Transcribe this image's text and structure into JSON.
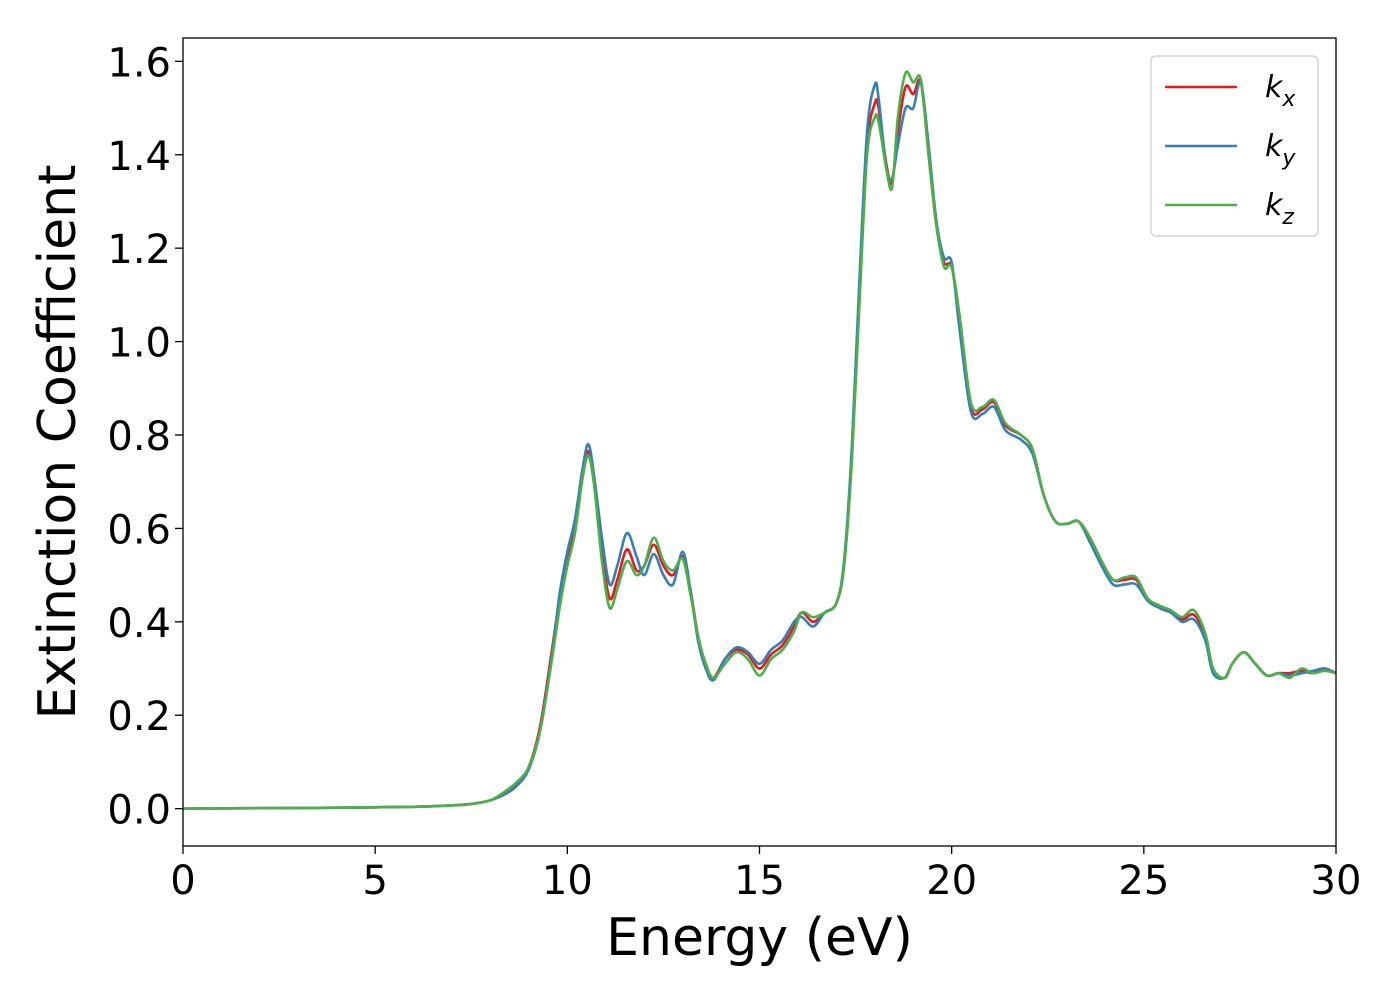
{
  "chart_data": {
    "type": "line",
    "title": "",
    "xlabel": "Energy (eV)",
    "ylabel": "Extinction Coefficient",
    "xlim": [
      0,
      30
    ],
    "ylim": [
      -0.08,
      1.65
    ],
    "xticks": [
      0,
      5,
      10,
      15,
      20,
      25,
      30
    ],
    "xtick_labels": [
      "0",
      "5",
      "10",
      "15",
      "20",
      "25",
      "30"
    ],
    "yticks": [
      0.0,
      0.2,
      0.4,
      0.6,
      0.8,
      1.0,
      1.2,
      1.4,
      1.6
    ],
    "ytick_labels": [
      "0.0",
      "0.2",
      "0.4",
      "0.6",
      "0.8",
      "1.0",
      "1.2",
      "1.4",
      "1.6"
    ],
    "grid": false,
    "legend_position": "top-right",
    "x": [
      0,
      2,
      4,
      6,
      7,
      7.5,
      8,
      8.4,
      8.7,
      9.0,
      9.3,
      9.6,
      9.8,
      10.0,
      10.2,
      10.4,
      10.55,
      10.7,
      10.9,
      11.1,
      11.3,
      11.55,
      11.8,
      12.0,
      12.25,
      12.5,
      12.75,
      13.0,
      13.2,
      13.4,
      13.6,
      13.8,
      14.1,
      14.4,
      14.7,
      15.0,
      15.3,
      15.6,
      15.9,
      16.1,
      16.4,
      16.7,
      17.0,
      17.2,
      17.4,
      17.6,
      17.8,
      18.0,
      18.1,
      18.3,
      18.45,
      18.6,
      18.8,
      19.0,
      19.2,
      19.4,
      19.6,
      19.8,
      20.0,
      20.2,
      20.5,
      20.8,
      21.1,
      21.4,
      21.8,
      22.1,
      22.4,
      22.7,
      23.0,
      23.3,
      23.6,
      23.9,
      24.2,
      24.5,
      24.8,
      25.1,
      25.4,
      25.7,
      26.0,
      26.3,
      26.6,
      26.8,
      27.1,
      27.3,
      27.6,
      27.9,
      28.2,
      28.5,
      28.8,
      29.1,
      29.4,
      29.7,
      30.0
    ],
    "series": [
      {
        "name": "k_x",
        "color": "#e41a1c",
        "values": [
          0.0,
          0.001,
          0.002,
          0.004,
          0.007,
          0.01,
          0.018,
          0.035,
          0.055,
          0.09,
          0.18,
          0.34,
          0.45,
          0.53,
          0.6,
          0.72,
          0.765,
          0.7,
          0.55,
          0.45,
          0.49,
          0.555,
          0.51,
          0.52,
          0.565,
          0.52,
          0.5,
          0.54,
          0.47,
          0.37,
          0.31,
          0.28,
          0.32,
          0.34,
          0.33,
          0.3,
          0.33,
          0.35,
          0.39,
          0.42,
          0.4,
          0.42,
          0.44,
          0.52,
          0.75,
          1.1,
          1.42,
          1.51,
          1.5,
          1.38,
          1.34,
          1.45,
          1.545,
          1.53,
          1.555,
          1.4,
          1.25,
          1.17,
          1.16,
          1.05,
          0.86,
          0.855,
          0.87,
          0.82,
          0.8,
          0.77,
          0.67,
          0.615,
          0.61,
          0.615,
          0.58,
          0.53,
          0.49,
          0.49,
          0.49,
          0.45,
          0.43,
          0.42,
          0.405,
          0.415,
          0.37,
          0.3,
          0.28,
          0.31,
          0.335,
          0.31,
          0.285,
          0.29,
          0.29,
          0.295,
          0.29,
          0.3,
          0.29
        ]
      },
      {
        "name": "k_y",
        "color": "#377eb8",
        "values": [
          0.0,
          0.001,
          0.002,
          0.004,
          0.007,
          0.01,
          0.018,
          0.032,
          0.05,
          0.085,
          0.17,
          0.33,
          0.46,
          0.55,
          0.62,
          0.73,
          0.78,
          0.71,
          0.58,
          0.48,
          0.52,
          0.59,
          0.54,
          0.5,
          0.545,
          0.5,
          0.48,
          0.55,
          0.47,
          0.36,
          0.3,
          0.275,
          0.32,
          0.345,
          0.335,
          0.31,
          0.34,
          0.36,
          0.4,
          0.41,
          0.39,
          0.42,
          0.44,
          0.53,
          0.77,
          1.13,
          1.45,
          1.55,
          1.52,
          1.37,
          1.35,
          1.42,
          1.5,
          1.5,
          1.555,
          1.42,
          1.26,
          1.18,
          1.17,
          1.03,
          0.85,
          0.845,
          0.86,
          0.81,
          0.79,
          0.76,
          0.67,
          0.615,
          0.61,
          0.615,
          0.57,
          0.52,
          0.48,
          0.48,
          0.48,
          0.445,
          0.43,
          0.42,
          0.4,
          0.405,
          0.36,
          0.29,
          0.28,
          0.31,
          0.335,
          0.31,
          0.285,
          0.29,
          0.285,
          0.29,
          0.295,
          0.3,
          0.29
        ]
      },
      {
        "name": "k_z",
        "color": "#4daf4a",
        "values": [
          0.0,
          0.001,
          0.002,
          0.004,
          0.007,
          0.01,
          0.018,
          0.038,
          0.058,
          0.09,
          0.17,
          0.32,
          0.43,
          0.52,
          0.59,
          0.71,
          0.755,
          0.69,
          0.53,
          0.43,
          0.47,
          0.53,
          0.5,
          0.52,
          0.58,
          0.53,
          0.51,
          0.535,
          0.46,
          0.37,
          0.31,
          0.28,
          0.31,
          0.335,
          0.32,
          0.285,
          0.32,
          0.34,
          0.38,
          0.42,
          0.41,
          0.42,
          0.44,
          0.52,
          0.74,
          1.08,
          1.4,
          1.48,
          1.47,
          1.37,
          1.33,
          1.48,
          1.575,
          1.555,
          1.56,
          1.4,
          1.25,
          1.16,
          1.16,
          1.06,
          0.87,
          0.86,
          0.875,
          0.825,
          0.8,
          0.77,
          0.67,
          0.615,
          0.61,
          0.615,
          0.58,
          0.53,
          0.49,
          0.495,
          0.495,
          0.45,
          0.435,
          0.425,
          0.41,
          0.425,
          0.375,
          0.3,
          0.28,
          0.31,
          0.335,
          0.31,
          0.285,
          0.29,
          0.28,
          0.3,
          0.29,
          0.295,
          0.29
        ]
      }
    ]
  },
  "legend": [
    {
      "base": "k",
      "sub": "x",
      "color": "#e41a1c"
    },
    {
      "base": "k",
      "sub": "y",
      "color": "#377eb8"
    },
    {
      "base": "k",
      "sub": "z",
      "color": "#4daf4a"
    }
  ]
}
